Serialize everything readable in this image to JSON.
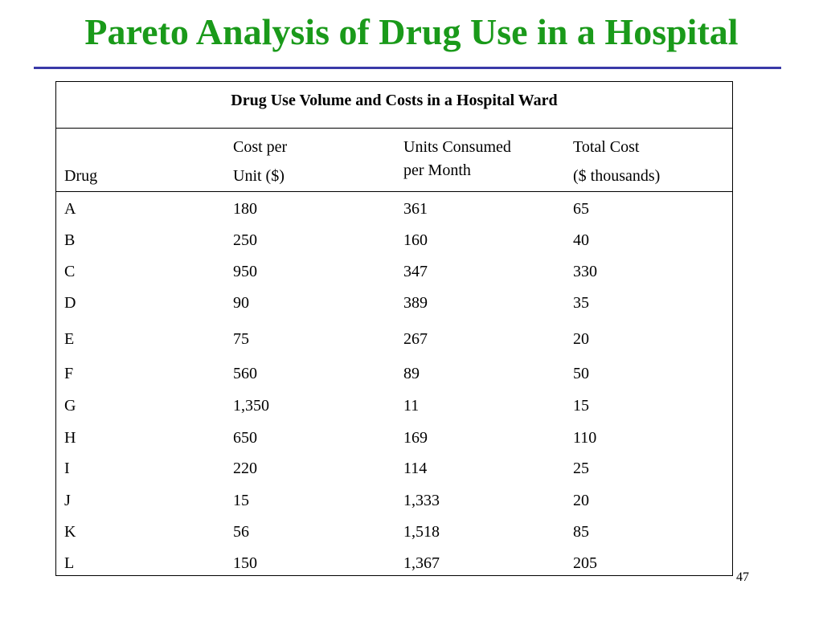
{
  "slide": {
    "title": "Pareto Analysis of Drug Use in a Hospital",
    "page_number": "47"
  },
  "table": {
    "caption": "Drug Use Volume and Costs in a Hospital Ward",
    "headers": {
      "drug": "Drug",
      "cost_line1": "Cost per",
      "cost_line2": "Unit ($)",
      "units_line1": "Units Consumed",
      "units_line2": "per Month",
      "total_line1": "Total Cost",
      "total_line2": "($ thousands)"
    },
    "rows": [
      [
        "A",
        "180",
        "361",
        "65"
      ],
      [
        "B",
        "250",
        "160",
        "40"
      ],
      [
        "C",
        "950",
        "347",
        "330"
      ],
      [
        "D",
        "90",
        "389",
        "35"
      ],
      [
        "E",
        "75",
        "267",
        "20"
      ],
      [
        "F",
        "560",
        "89",
        "50"
      ],
      [
        "G",
        "1,350",
        "11",
        "15"
      ],
      [
        "H",
        "650",
        "169",
        "110"
      ],
      [
        "I",
        "220",
        "114",
        "25"
      ],
      [
        "J",
        "15",
        "1,333",
        "20"
      ],
      [
        "K",
        "56",
        "1,518",
        "85"
      ],
      [
        "L",
        "150",
        "1,367",
        "205"
      ]
    ]
  },
  "colors": {
    "title": "#1a9a1a",
    "rule": "#3a3aa8"
  }
}
